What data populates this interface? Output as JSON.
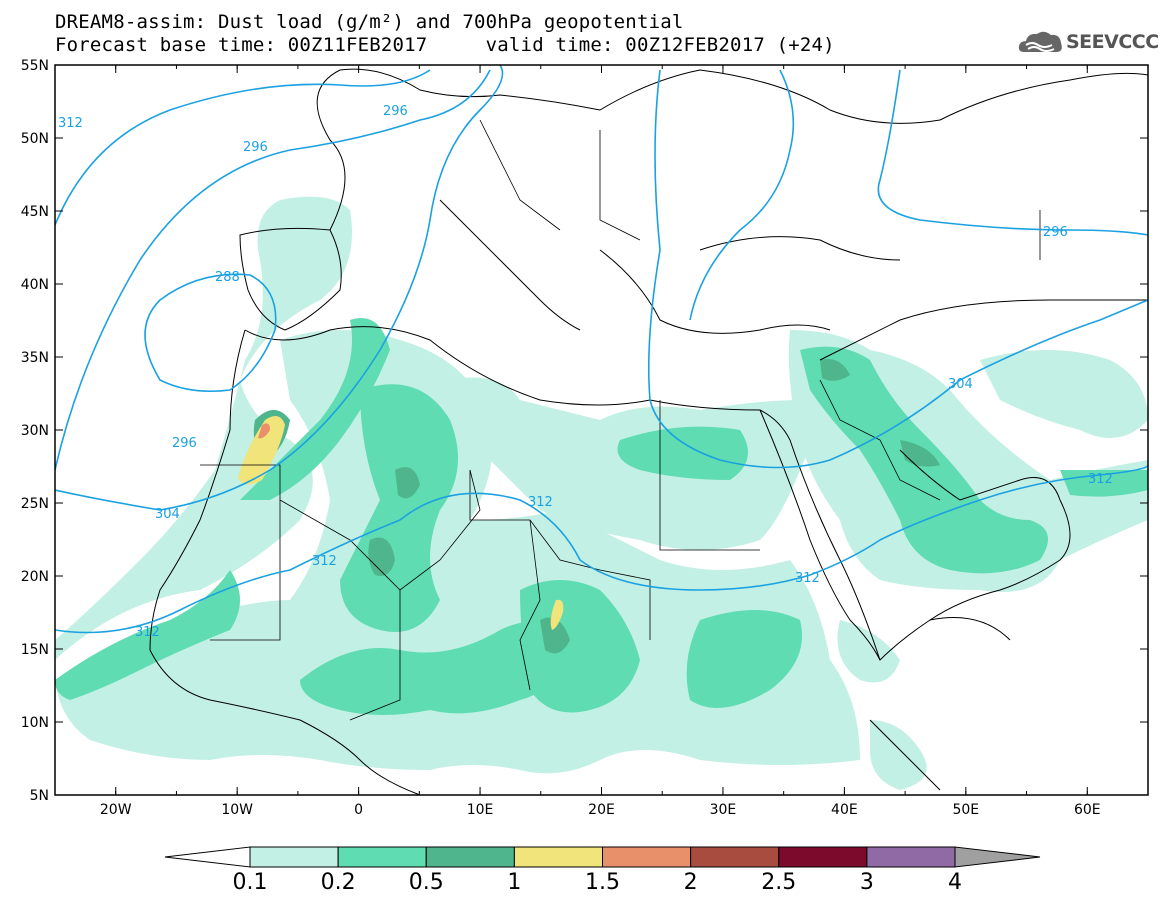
{
  "title": {
    "line1": "DREAM8-assim: Dust load (g/m²) and 700hPa geopotential",
    "line2": "Forecast base time: 00Z11FEB2017     valid time: 00Z12FEB2017 (+24)"
  },
  "logo": {
    "text": "SEEVCCC",
    "icon": "cloud-logo-icon"
  },
  "axes": {
    "lon_ticks": [
      "20W",
      "10W",
      "0",
      "10E",
      "20E",
      "30E",
      "40E",
      "50E",
      "60E"
    ],
    "lat_ticks": [
      "55N",
      "50N",
      "45N",
      "40N",
      "35N",
      "30N",
      "25N",
      "20N",
      "15N",
      "10N",
      "5N"
    ],
    "lon_range": [
      -25,
      65
    ],
    "lat_range": [
      5,
      55
    ]
  },
  "contours": {
    "color": "#1ba1e2",
    "labels": [
      "312",
      "296",
      "296",
      "288",
      "296",
      "304",
      "312",
      "312",
      "312",
      "304",
      "312",
      "296"
    ]
  },
  "colorbar": {
    "labels": [
      "0.1",
      "0.2",
      "0.5",
      "1",
      "1.5",
      "2",
      "2.5",
      "3",
      "4"
    ],
    "colors": [
      "#c3f0e4",
      "#5fdcb1",
      "#4fb58c",
      "#f0e47a",
      "#e8906a",
      "#a84c3f",
      "#7b0a2c",
      "#8f6aa4",
      "#a0a0a0"
    ]
  }
}
